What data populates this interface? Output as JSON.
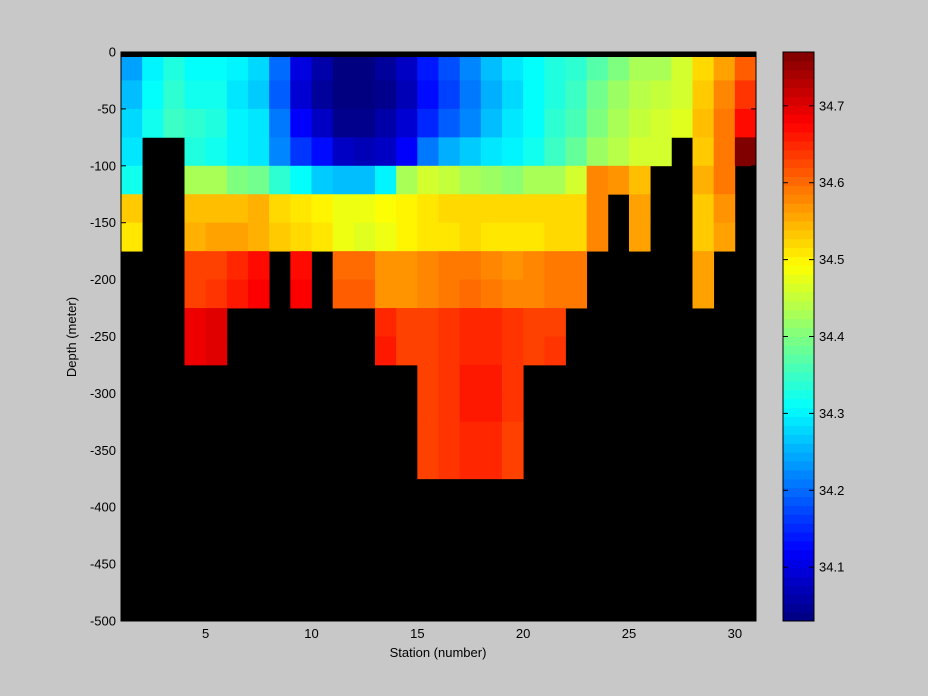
{
  "chart_data": {
    "type": "heatmap",
    "title": "",
    "xlabel": "Station (number)",
    "ylabel": "Depth (meter)",
    "x": [
      1,
      2,
      3,
      4,
      5,
      6,
      7,
      8,
      9,
      10,
      11,
      12,
      13,
      14,
      15,
      16,
      17,
      18,
      19,
      20,
      21,
      22,
      23,
      24,
      25,
      26,
      27,
      28,
      29,
      30,
      31
    ],
    "xlim": [
      1,
      31
    ],
    "ylim": [
      -500,
      0
    ],
    "x_ticks": [
      5,
      10,
      15,
      20,
      25,
      30
    ],
    "y_ticks": [
      0,
      -50,
      -100,
      -150,
      -200,
      -250,
      -300,
      -350,
      -400,
      -450,
      -500
    ],
    "depth_rows": [
      -25,
      -50,
      -75,
      -100,
      -125,
      -150,
      -175,
      -200,
      -225,
      -250,
      -275,
      -300,
      -325,
      -350,
      -375,
      -400
    ],
    "colorbar": {
      "range": [
        34.03,
        34.77
      ],
      "ticks": [
        34.1,
        34.2,
        34.3,
        34.4,
        34.5,
        34.6,
        34.7
      ],
      "colormap": "jet"
    },
    "background_color": "#000000",
    "values": [
      [
        34.24,
        34.3,
        34.33,
        34.31,
        34.31,
        34.3,
        34.28,
        34.2,
        34.1,
        34.06,
        34.03,
        34.03,
        34.05,
        34.08,
        34.14,
        34.18,
        34.22,
        34.26,
        34.29,
        34.31,
        34.33,
        34.34,
        34.37,
        34.4,
        34.43,
        34.43,
        34.46,
        34.52,
        34.56,
        34.61
      ],
      [
        34.26,
        34.31,
        34.34,
        34.32,
        34.32,
        34.29,
        34.27,
        34.19,
        34.09,
        34.05,
        34.03,
        34.03,
        34.04,
        34.07,
        34.13,
        34.17,
        34.21,
        34.25,
        34.28,
        34.31,
        34.33,
        34.35,
        34.39,
        34.42,
        34.44,
        34.45,
        34.46,
        34.53,
        34.58,
        34.64
      ],
      [
        34.28,
        34.32,
        34.35,
        34.34,
        34.33,
        34.3,
        34.29,
        34.21,
        34.12,
        34.08,
        34.04,
        34.04,
        34.06,
        34.09,
        34.15,
        34.19,
        34.22,
        34.26,
        34.29,
        34.31,
        34.34,
        34.36,
        34.4,
        34.43,
        34.45,
        34.46,
        34.47,
        34.54,
        34.59,
        34.67
      ],
      [
        34.29,
        null,
        null,
        34.33,
        34.32,
        34.3,
        34.29,
        34.22,
        34.16,
        34.13,
        34.08,
        34.07,
        34.08,
        34.12,
        34.21,
        34.25,
        34.27,
        34.29,
        34.3,
        34.32,
        34.35,
        34.38,
        34.42,
        34.44,
        34.46,
        34.46,
        null,
        34.53,
        34.59,
        34.77
      ],
      [
        34.32,
        null,
        null,
        34.43,
        34.43,
        34.4,
        34.39,
        34.34,
        34.31,
        34.27,
        34.26,
        34.26,
        34.3,
        34.43,
        34.46,
        34.45,
        34.43,
        34.42,
        34.41,
        34.43,
        34.43,
        34.46,
        34.58,
        34.57,
        34.54,
        null,
        null,
        34.55,
        34.59,
        null
      ],
      [
        34.53,
        null,
        null,
        34.54,
        34.54,
        34.54,
        34.55,
        34.52,
        34.51,
        34.5,
        34.48,
        34.48,
        34.49,
        34.5,
        34.51,
        34.52,
        34.52,
        34.52,
        34.52,
        34.52,
        34.52,
        34.52,
        34.58,
        null,
        34.56,
        null,
        null,
        34.53,
        34.57,
        null
      ],
      [
        34.51,
        null,
        null,
        34.55,
        34.56,
        34.56,
        34.55,
        34.53,
        34.52,
        34.51,
        34.48,
        34.47,
        34.48,
        34.5,
        34.51,
        34.51,
        34.52,
        34.51,
        34.51,
        34.51,
        34.52,
        34.52,
        34.58,
        null,
        34.56,
        null,
        null,
        34.53,
        34.56,
        null
      ],
      [
        null,
        null,
        null,
        34.63,
        34.63,
        34.65,
        34.67,
        null,
        34.67,
        null,
        34.6,
        34.6,
        34.57,
        34.57,
        34.58,
        34.59,
        34.59,
        34.58,
        34.57,
        34.58,
        34.59,
        34.59,
        null,
        null,
        null,
        null,
        null,
        34.56,
        null,
        null
      ],
      [
        null,
        null,
        null,
        34.63,
        34.64,
        34.66,
        34.68,
        null,
        34.68,
        null,
        34.61,
        34.61,
        34.57,
        34.57,
        34.58,
        34.59,
        34.6,
        34.59,
        34.58,
        34.58,
        34.59,
        34.59,
        null,
        null,
        null,
        null,
        null,
        34.56,
        null,
        null
      ],
      [
        null,
        null,
        null,
        34.69,
        34.7,
        null,
        null,
        null,
        null,
        null,
        null,
        null,
        34.65,
        34.63,
        34.63,
        34.64,
        34.65,
        34.65,
        34.64,
        34.63,
        34.63,
        null,
        null,
        null,
        null,
        null,
        null,
        null,
        null,
        null
      ],
      [
        null,
        null,
        null,
        34.69,
        34.7,
        null,
        null,
        null,
        null,
        null,
        null,
        null,
        34.66,
        34.63,
        34.63,
        34.64,
        34.65,
        34.65,
        34.64,
        34.63,
        34.64,
        null,
        null,
        null,
        null,
        null,
        null,
        null,
        null,
        null
      ],
      [
        null,
        null,
        null,
        null,
        null,
        null,
        null,
        null,
        null,
        null,
        null,
        null,
        null,
        null,
        34.63,
        34.64,
        34.66,
        34.66,
        34.64,
        null,
        null,
        null,
        null,
        null,
        null,
        null,
        null,
        null,
        null,
        null
      ],
      [
        null,
        null,
        null,
        null,
        null,
        null,
        null,
        null,
        null,
        null,
        null,
        null,
        null,
        null,
        34.63,
        34.64,
        34.66,
        34.66,
        34.64,
        null,
        null,
        null,
        null,
        null,
        null,
        null,
        null,
        null,
        null,
        null
      ],
      [
        null,
        null,
        null,
        null,
        null,
        null,
        null,
        null,
        null,
        null,
        null,
        null,
        null,
        null,
        34.63,
        34.64,
        34.65,
        34.65,
        34.63,
        null,
        null,
        null,
        null,
        null,
        null,
        null,
        null,
        null,
        null,
        null
      ],
      [
        null,
        null,
        null,
        null,
        null,
        null,
        null,
        null,
        null,
        null,
        null,
        null,
        null,
        null,
        34.63,
        34.64,
        34.65,
        34.65,
        34.63,
        null,
        null,
        null,
        null,
        null,
        null,
        null,
        null,
        null,
        null,
        null
      ],
      [
        null,
        null,
        null,
        null,
        null,
        null,
        null,
        null,
        null,
        null,
        null,
        null,
        null,
        null,
        null,
        null,
        null,
        null,
        null,
        null,
        null,
        null,
        null,
        null,
        null,
        null,
        null,
        null,
        null,
        null
      ]
    ]
  }
}
